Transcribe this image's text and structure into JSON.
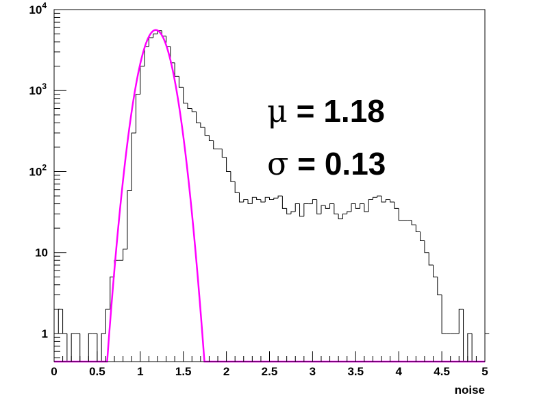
{
  "chart_data": {
    "type": "histogram",
    "xlabel": "noise",
    "ylabel": "",
    "xlim": [
      0,
      5
    ],
    "ylim": [
      0.45,
      10000
    ],
    "log_y": true,
    "grid": false,
    "legend": "none",
    "bin_width": 0.05,
    "x_ticks": [
      "0",
      "0.5",
      "1",
      "1.5",
      "2",
      "2.5",
      "3",
      "3.5",
      "4",
      "4.5",
      "5"
    ],
    "x_tick_values": [
      0,
      0.5,
      1,
      1.5,
      2,
      2.5,
      3,
      3.5,
      4,
      4.5,
      5
    ],
    "y_ticks": [
      {
        "value": 1,
        "base": "1",
        "exp": ""
      },
      {
        "value": 10,
        "base": "10",
        "exp": ""
      },
      {
        "value": 100,
        "base": "10",
        "exp": "2"
      },
      {
        "value": 1000,
        "base": "10",
        "exp": "3"
      },
      {
        "value": 10000,
        "base": "10",
        "exp": "4"
      }
    ],
    "series": [
      {
        "type": "histogram",
        "color": "#000000",
        "counts": [
          1,
          2,
          1,
          0,
          1,
          1,
          0,
          0,
          1,
          1,
          0,
          1,
          2,
          5,
          8,
          8,
          11,
          58,
          300,
          900,
          2000,
          3500,
          4500,
          5000,
          5500,
          4700,
          3500,
          2200,
          1500,
          1100,
          700,
          600,
          550,
          400,
          350,
          280,
          240,
          190,
          190,
          150,
          100,
          75,
          55,
          42,
          45,
          40,
          48,
          45,
          42,
          48,
          45,
          47,
          50,
          35,
          30,
          32,
          40,
          28,
          40,
          40,
          45,
          30,
          38,
          35,
          40,
          30,
          26,
          30,
          32,
          40,
          35,
          40,
          32,
          45,
          48,
          50,
          42,
          45,
          42,
          35,
          25,
          25,
          25,
          22,
          18,
          14,
          10,
          7,
          5,
          3,
          1,
          1,
          1,
          1,
          2,
          0,
          1,
          0,
          0,
          0,
          1
        ]
      },
      {
        "type": "gaussian_fit",
        "color": "#ff00ff",
        "mu": 1.18,
        "sigma": 0.13,
        "peak": 5600
      }
    ]
  },
  "annotation": {
    "mu_symbol": "μ",
    "mu_text": " = 1.18",
    "sigma_symbol": "σ",
    "sigma_text": " = 0.13"
  }
}
